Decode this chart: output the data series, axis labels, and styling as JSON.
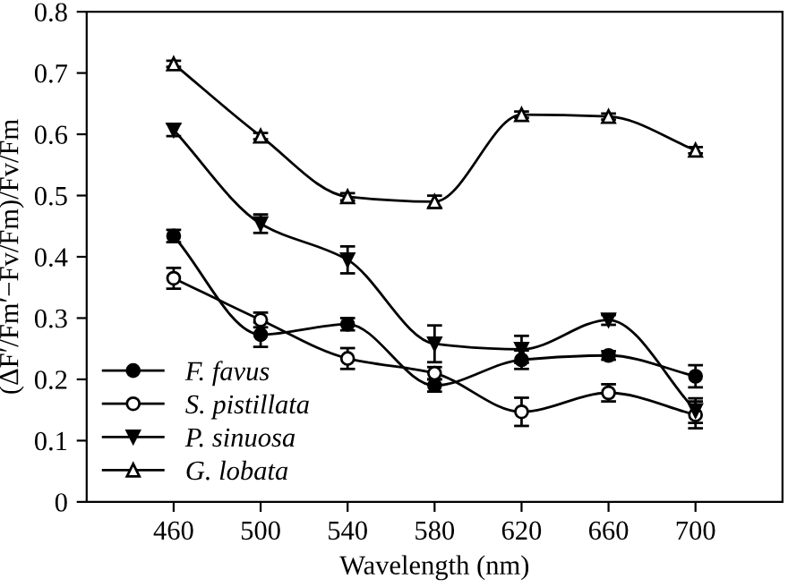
{
  "chart_data": {
    "type": "line",
    "xlabel": "Wavelength (nm)",
    "ylabel": "(ΔF′/Fm′−Fv/Fm)/Fv/Fm",
    "x": [
      460,
      500,
      540,
      580,
      620,
      660,
      700
    ],
    "xlim": [
      420,
      740
    ],
    "xticks": [
      460,
      500,
      540,
      580,
      620,
      660,
      700
    ],
    "ylim": [
      0,
      0.8
    ],
    "yticks": [
      0,
      0.1,
      0.2,
      0.3,
      0.4,
      0.5,
      0.6,
      0.7,
      0.8
    ],
    "grid": false,
    "legend": "bottom left",
    "line_style": "solid",
    "series": [
      {
        "name": "F. favus",
        "color": "#000000",
        "marker": "circle",
        "values": [
          0.434,
          0.273,
          0.29,
          0.19,
          0.232,
          0.239,
          0.205
        ],
        "errors": [
          0.01,
          0.02,
          0.01,
          0.01,
          0.015,
          0.007,
          0.018
        ]
      },
      {
        "name": "S. pistillata",
        "color": "#000000",
        "marker": "open circle",
        "values": [
          0.365,
          0.297,
          0.234,
          0.21,
          0.147,
          0.178,
          0.142
        ],
        "errors": [
          0.017,
          0.012,
          0.017,
          0.01,
          0.023,
          0.014,
          0.022
        ]
      },
      {
        "name": "P. sinuosa",
        "color": "#000000",
        "marker": "triangle down",
        "values": [
          0.607,
          0.454,
          0.395,
          0.258,
          0.249,
          0.297,
          0.149
        ],
        "errors": [
          0.01,
          0.015,
          0.022,
          0.03,
          0.022,
          0.008,
          0.02
        ]
      },
      {
        "name": "G. lobata",
        "color": "#000000",
        "marker": "triangle",
        "values": [
          0.715,
          0.597,
          0.498,
          0.49,
          0.632,
          0.629,
          0.574
        ],
        "errors": [
          0.005,
          0.005,
          0.006,
          0.01,
          0.005,
          0.005,
          0.005
        ]
      }
    ]
  }
}
